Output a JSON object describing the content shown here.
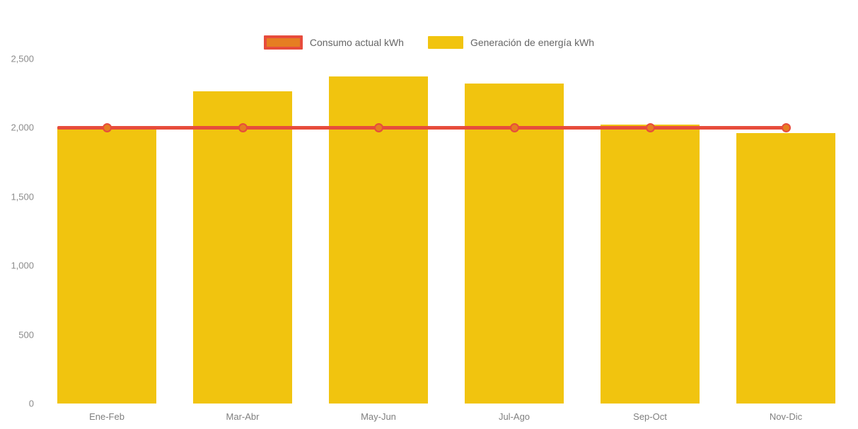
{
  "legend": {
    "items": [
      {
        "label": "Consumo actual kWh",
        "type": "line",
        "fill": "#e67e22",
        "border": "#e74c3c"
      },
      {
        "label": "Generación de energía kWh",
        "type": "bar",
        "fill": "#f1c40f"
      }
    ]
  },
  "chart_data": {
    "type": "bar",
    "title": "",
    "xlabel": "",
    "ylabel": "",
    "categories": [
      "Ene-Feb",
      "Mar-Abr",
      "May-Jun",
      "Jul-Ago",
      "Sep-Oct",
      "Nov-Dic"
    ],
    "series": [
      {
        "name": "Consumo actual kWh",
        "type": "line",
        "color": "#e74c3c",
        "marker_fill": "#e67e22",
        "values": [
          2000,
          2000,
          2000,
          2000,
          2000,
          2000
        ]
      },
      {
        "name": "Generación de energía kWh",
        "type": "bar",
        "color": "#f1c40f",
        "values": [
          2000,
          2260,
          2370,
          2320,
          2020,
          1960
        ]
      }
    ],
    "ylim": [
      0,
      2500
    ],
    "ytick_step": 500,
    "ytick_labels": [
      "0",
      "500",
      "1,000",
      "1,500",
      "2,000",
      "2,500"
    ],
    "grid": false,
    "legend_position": "top"
  },
  "colors": {
    "background": "#ffffff",
    "bar": "#f1c40f",
    "line": "#e74c3c",
    "marker": "#e67e22",
    "tick_text": "#8c8c8c",
    "category_text": "#7f7f7f",
    "legend_text": "#666666"
  }
}
